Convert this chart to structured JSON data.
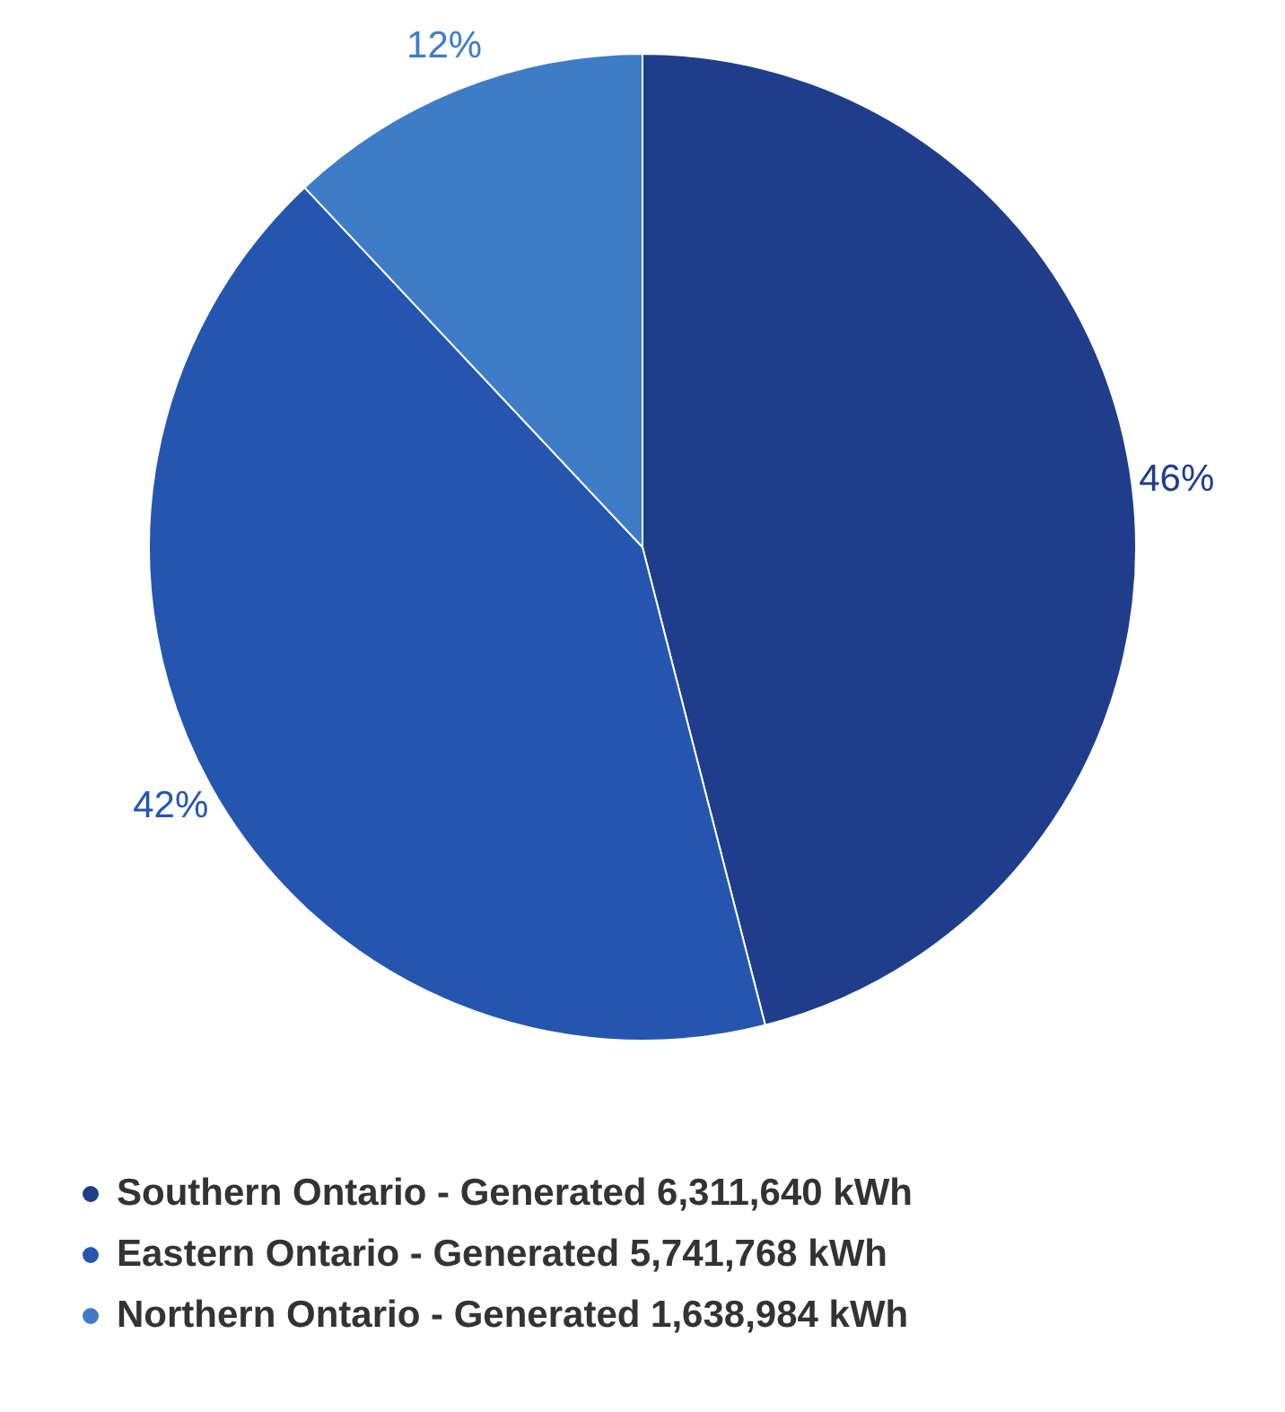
{
  "chart_data": {
    "type": "pie",
    "categories": [
      "Southern Ontario - Generated 6,311,640 kWh",
      "Eastern Ontario - Generated 5,741,768 kWh",
      "Northern Ontario - Generated 1,638,984 kWh"
    ],
    "values": [
      46,
      42,
      12
    ],
    "value_labels": [
      "46%",
      "42%",
      "12%"
    ],
    "colors": [
      "#1f3d8a",
      "#2456b0",
      "#3f7cc8"
    ],
    "legend": "bottom"
  }
}
